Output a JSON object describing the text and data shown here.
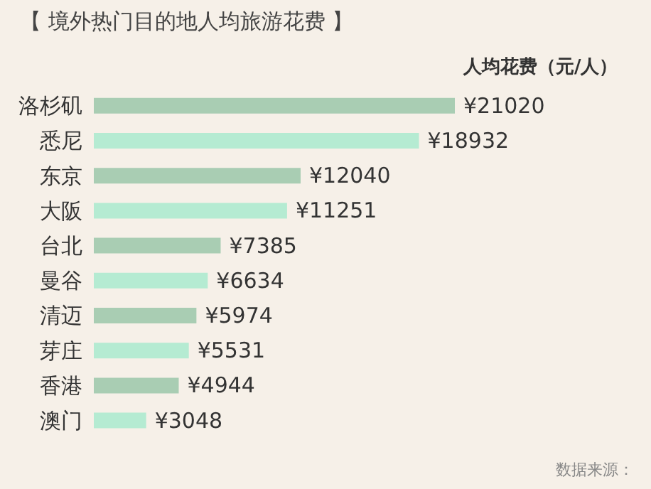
{
  "chart_data": {
    "type": "bar",
    "orientation": "horizontal",
    "title": "【 境外热门目的地人均旅游花费 】",
    "xlabel": "人均花费（元/人）",
    "categories": [
      "洛杉矶",
      "悉尼",
      "东京",
      "大阪",
      "台北",
      "曼谷",
      "清迈",
      "芽庄",
      "香港",
      "澳门"
    ],
    "values": [
      21020,
      18932,
      12040,
      11251,
      7385,
      6634,
      5974,
      5531,
      4944,
      3048
    ],
    "value_labels": [
      "¥21020",
      "¥18932",
      "¥12040",
      "¥11251",
      "¥7385",
      "¥6634",
      "¥5974",
      "¥5531",
      "¥4944",
      "¥3048"
    ],
    "colors": [
      "#a9cdb3",
      "#b5ebd2",
      "#a9cdb3",
      "#b5ebd2",
      "#a9cdb3",
      "#b5ebd2",
      "#a9cdb3",
      "#b5ebd2",
      "#a9cdb3",
      "#b5ebd2"
    ],
    "annotations": [
      "数据来源："
    ],
    "grid": false,
    "legend": false
  }
}
